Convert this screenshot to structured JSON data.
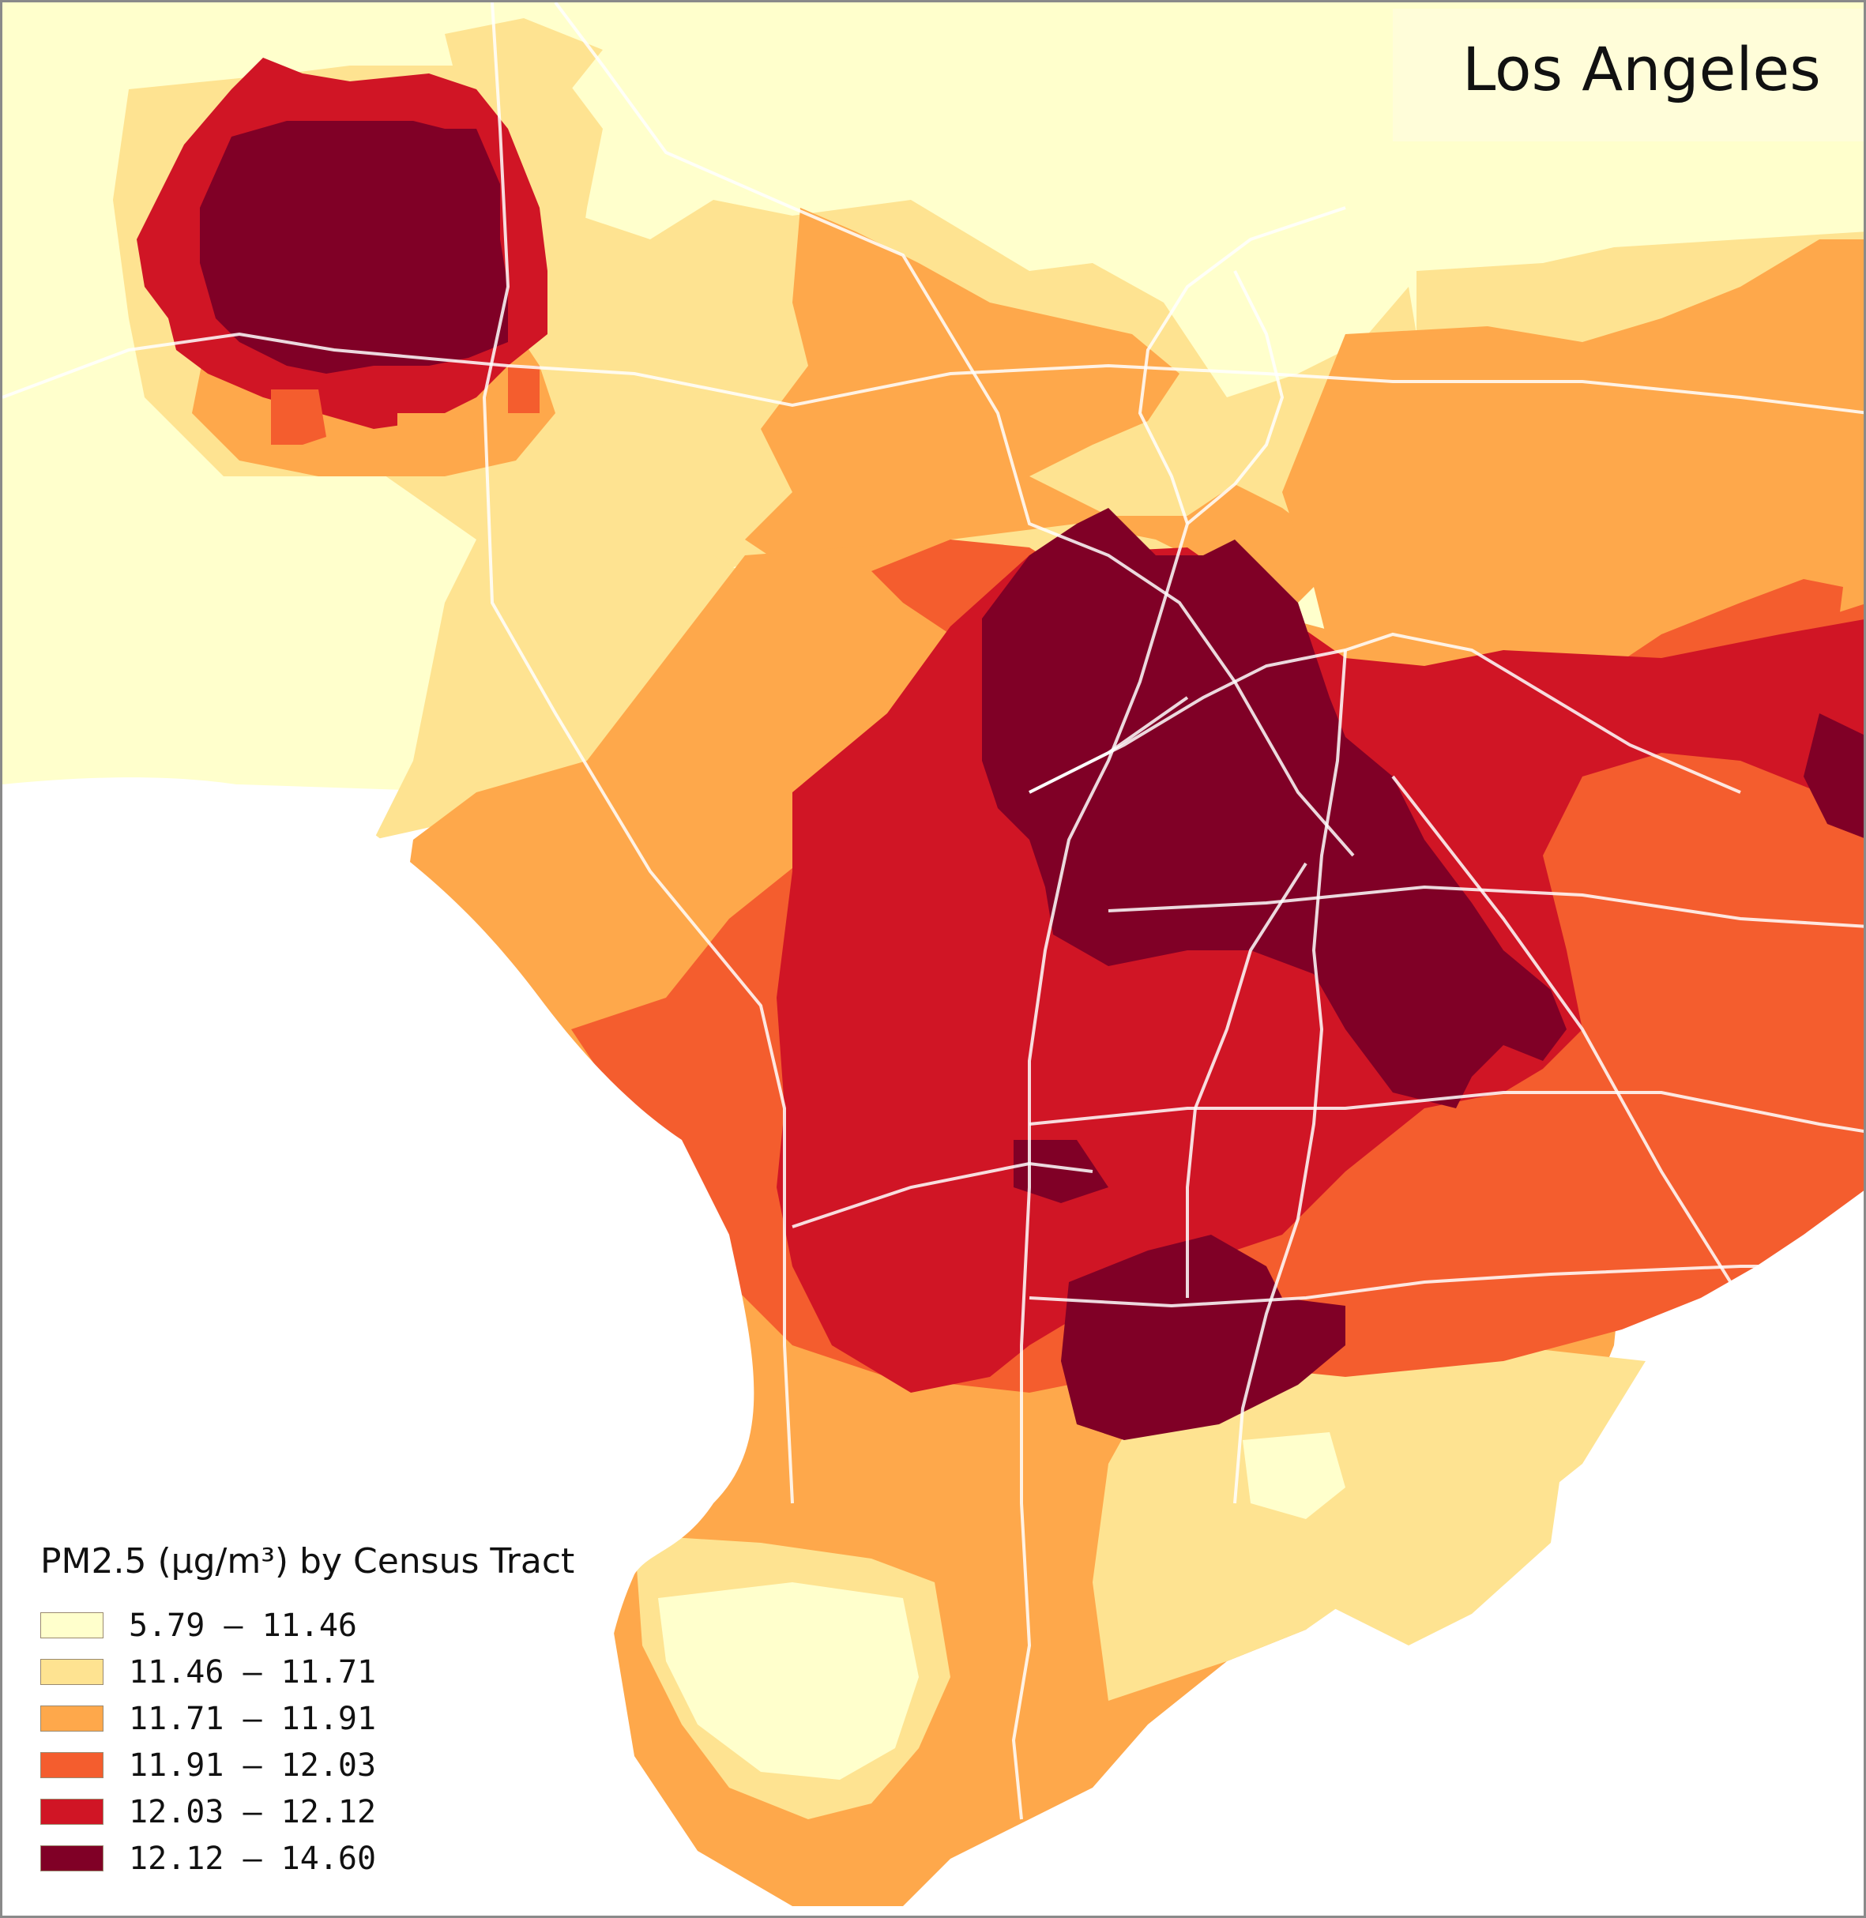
{
  "map": {
    "title": "Los Angeles",
    "legend": {
      "title": "PM2.5 (µg/m³) by Census Tract",
      "classes": [
        {
          "label": "5.79 – 11.46",
          "color": "#ffffcc"
        },
        {
          "label": "11.46 – 11.71",
          "color": "#fee391"
        },
        {
          "label": "11.71 – 11.91",
          "color": "#fea84b"
        },
        {
          "label": "11.91 – 12.03",
          "color": "#f45d2e"
        },
        {
          "label": "12.03 – 12.12",
          "color": "#d01525"
        },
        {
          "label": "12.12 – 14.60",
          "color": "#800026"
        }
      ]
    },
    "colors": {
      "ocean": "#ffffff",
      "highway": "#ffffff",
      "border": "#8a8a8a"
    }
  }
}
